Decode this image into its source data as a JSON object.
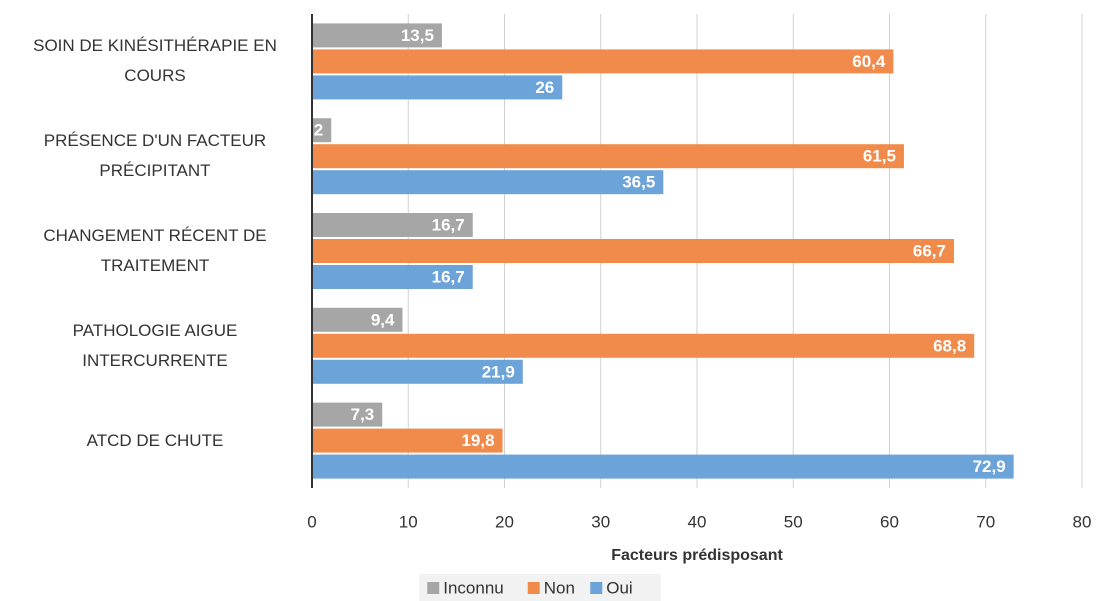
{
  "chart_data": {
    "type": "hbar",
    "xlabel": "Facteurs prédisposant",
    "categories": [
      "SOIN DE KINÉSITHÉRAPIE EN COURS",
      "PRÉSENCE D'UN FACTEUR PRÉCIPITANT",
      "CHANGEMENT RÉCENT DE TRAITEMENT",
      "PATHOLOGIE AIGUE INTERCURRENTE",
      "ATCD DE CHUTE"
    ],
    "series": [
      {
        "name": "Inconnu",
        "color": "#a6a6a6",
        "values": [
          13.5,
          2,
          16.7,
          9.4,
          7.3
        ],
        "value_labels": [
          "13,5",
          "2",
          "16,7",
          "9,4",
          "7,3"
        ]
      },
      {
        "name": "Non",
        "color": "#f08b4c",
        "values": [
          60.4,
          61.5,
          66.7,
          68.8,
          19.8
        ],
        "value_labels": [
          "60,4",
          "61,5",
          "66,7",
          "68,8",
          "19,8"
        ]
      },
      {
        "name": "Oui",
        "color": "#6ca3d9",
        "values": [
          26,
          36.5,
          16.7,
          21.9,
          72.9
        ],
        "value_labels": [
          "26",
          "36,5",
          "16,7",
          "21,9",
          "72,9"
        ]
      }
    ],
    "xlim": [
      0,
      80
    ],
    "xticks": [
      0,
      10,
      20,
      30,
      40,
      50,
      60,
      70,
      80
    ],
    "grid": true,
    "legend": "bottom"
  }
}
